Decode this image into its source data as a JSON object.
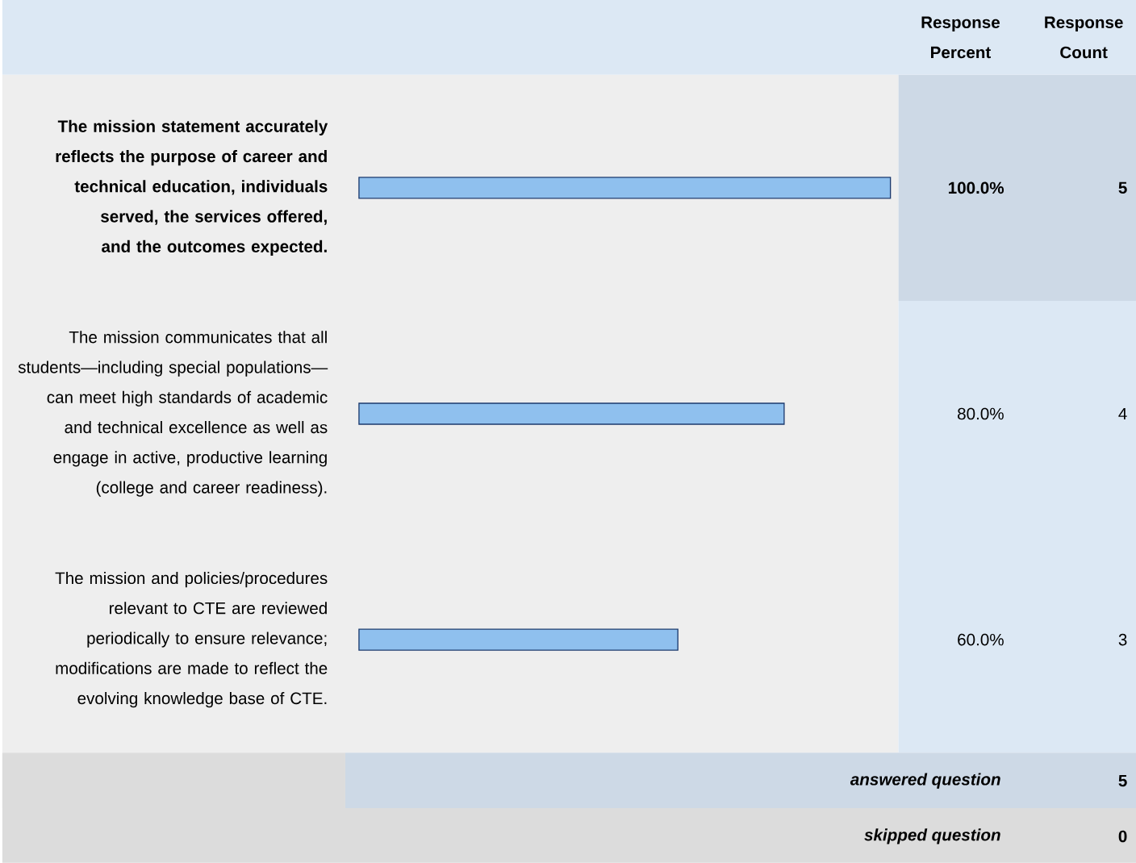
{
  "chart_data": {
    "type": "bar",
    "orientation": "horizontal",
    "categories": [
      "The mission statement accurately reflects the purpose of career and technical education, individuals served, the services offered, and the outcomes expected.",
      "The mission communicates that all students—including special populations—can meet high standards of academic and technical excellence as well as engage in active, productive learning (college and career readiness).",
      "The mission and policies/procedures relevant to CTE are reviewed periodically to ensure relevance; modifications are made to reflect the evolving knowledge base of CTE."
    ],
    "values": [
      100,
      80,
      60
    ],
    "value_labels": [
      "100.0%",
      "80.0%",
      "60.0%"
    ],
    "color": "#8fc0ee",
    "annotations": [
      "Response Percent",
      "Response Count",
      "5",
      "4",
      "3",
      "answered question",
      "5",
      "skipped question",
      "0"
    ]
  }
}
